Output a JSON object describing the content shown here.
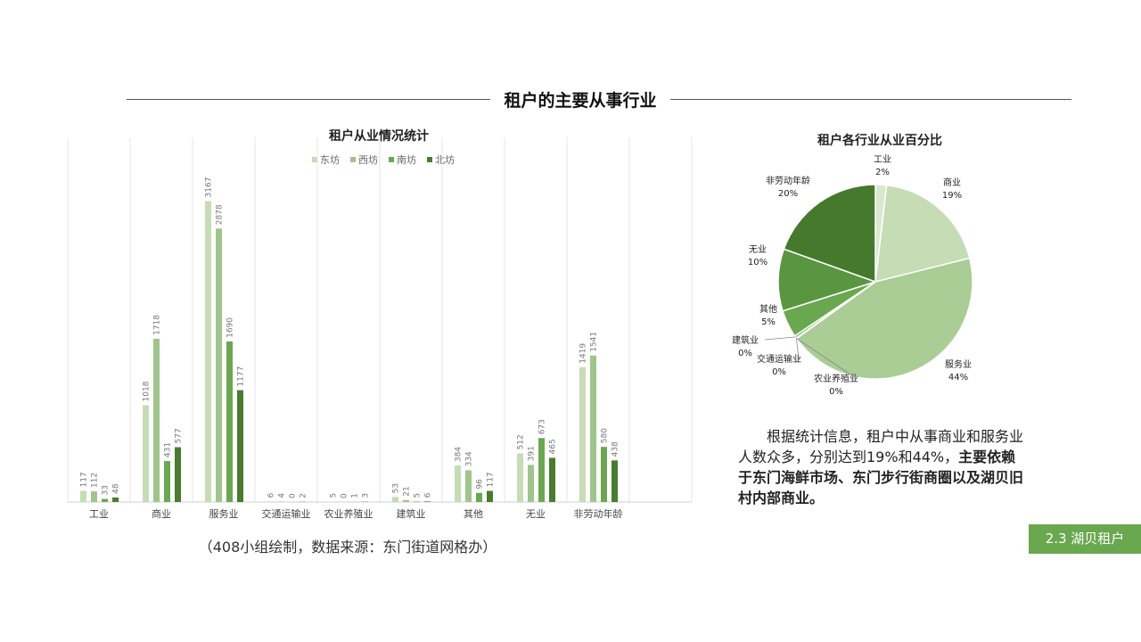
{
  "page": {
    "title": "租户的主要从事行业",
    "section_tag": "2.3 湖贝租户",
    "source": "（408小组绘制，数据来源：东门街道网格办）",
    "note_normal": "根据统计信息，租户中从事商业和服务业人数众多，分别达到19%和44%，",
    "note_bold": "主要依赖于东门海鲜市场、东门步行街商圈以及湖贝旧村内部商业。"
  },
  "chart_data": [
    {
      "type": "bar",
      "title": "租户从业情况统计",
      "categories": [
        "工业",
        "商业",
        "服务业",
        "交通运输业",
        "农业养殖业",
        "建筑业",
        "其他",
        "无业",
        "非劳动年龄"
      ],
      "series": [
        {
          "name": "东坊",
          "color": "#c5dcb5",
          "values": [
            117,
            1018,
            3167,
            6,
            5,
            53,
            384,
            512,
            1419
          ]
        },
        {
          "name": "西坊",
          "color": "#9ec68a",
          "values": [
            112,
            1718,
            2878,
            4,
            0,
            21,
            334,
            391,
            1541
          ]
        },
        {
          "name": "南坊",
          "color": "#6aa84f",
          "values": [
            33,
            431,
            1690,
            0,
            1,
            5,
            96,
            673,
            580
          ]
        },
        {
          "name": "北坊",
          "color": "#4a7c2f",
          "values": [
            48,
            577,
            1177,
            2,
            3,
            6,
            117,
            465,
            438
          ]
        }
      ],
      "ylim": [
        0,
        3500
      ],
      "grid": false,
      "legend": "top"
    },
    {
      "type": "pie",
      "title": "租户各行业从业百分比",
      "slices": [
        {
          "label": "工业",
          "percent_label": "2%",
          "value": 1.85,
          "color": "#d9e8cf"
        },
        {
          "label": "商业",
          "percent_label": "19%",
          "value": 19.24,
          "color": "#c5dcb5"
        },
        {
          "label": "服务业",
          "percent_label": "44%",
          "value": 43.98,
          "color": "#a9cd94"
        },
        {
          "label": "交通运输业",
          "percent_label": "0%",
          "value": 0.06,
          "color": "#93be7c"
        },
        {
          "label": "农业养殖业",
          "percent_label": "0%",
          "value": 0.04,
          "color": "#84b46a"
        },
        {
          "label": "建筑业",
          "percent_label": "0%",
          "value": 0.42,
          "color": "#79ad5f"
        },
        {
          "label": "其他",
          "percent_label": "5%",
          "value": 4.55,
          "color": "#6aa84f"
        },
        {
          "label": "无业",
          "percent_label": "10%",
          "value": 10.33,
          "color": "#5a9640"
        },
        {
          "label": "非劳动年龄",
          "percent_label": "20%",
          "value": 19.53,
          "color": "#457a2c"
        }
      ]
    }
  ]
}
